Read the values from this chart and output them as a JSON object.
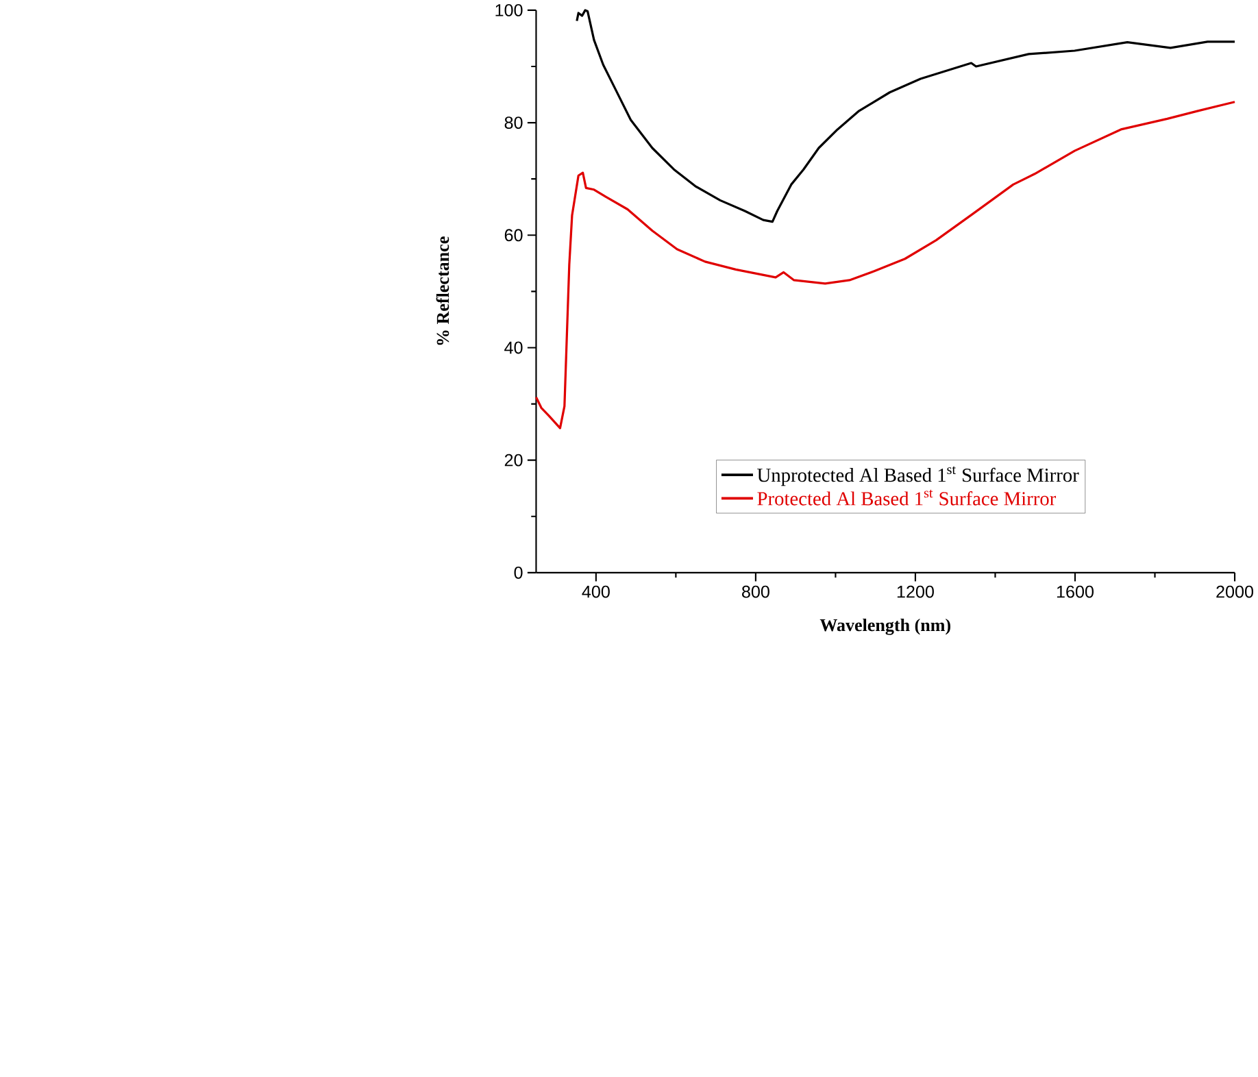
{
  "chart_data": {
    "type": "line",
    "xlabel": "Wavelength (nm)",
    "ylabel": "% Reflectance",
    "xlim": [
      250,
      2000
    ],
    "ylim": [
      0,
      100
    ],
    "xticks": [
      400,
      800,
      1200,
      1600,
      2000
    ],
    "yticks": [
      0,
      20,
      40,
      60,
      80,
      100
    ],
    "legend": "bottom",
    "line_style": "solid",
    "series": [
      {
        "name": "Unprotected Al Based 1$^{st}$ Surface Mirror",
        "color": "#000000",
        "x": [
          352,
          356,
          365,
          373,
          379,
          395,
          418,
          449,
          487,
          541,
          595,
          649,
          711,
          773,
          819,
          842,
          854,
          889,
          920,
          958,
          1005,
          1059,
          1136,
          1213,
          1340,
          1352,
          1484,
          1599,
          1731,
          1839,
          1932,
          2000
        ],
        "values": [
          98.1,
          99.5,
          99.0,
          100,
          99.8,
          94.7,
          90.3,
          85.9,
          80.5,
          75.5,
          71.7,
          68.7,
          66.2,
          64.3,
          62.7,
          62.4,
          64.3,
          69.0,
          71.7,
          75.5,
          78.8,
          82.1,
          85.4,
          87.8,
          90.6,
          90.0,
          92.2,
          92.8,
          94.3,
          93.3,
          94.4,
          94.4
        ]
      },
      {
        "name": "Protected Al Based 1$^{st}$ Surface Mirror",
        "color": "#e00000",
        "x": [
          250,
          263,
          282,
          310,
          321,
          333,
          340,
          356,
          367,
          375,
          395,
          425,
          479,
          541,
          603,
          673,
          750,
          850,
          870,
          896,
          974,
          1035,
          1097,
          1174,
          1252,
          1344,
          1445,
          1499,
          1599,
          1715,
          1831,
          1908,
          2000
        ],
        "values": [
          31.2,
          29.3,
          27.9,
          25.7,
          29.6,
          54.7,
          63.5,
          70.6,
          71.1,
          68.4,
          68.1,
          66.8,
          64.6,
          60.8,
          57.5,
          55.3,
          53.9,
          52.5,
          53.4,
          52.0,
          51.4,
          52.0,
          53.6,
          55.8,
          59.1,
          63.8,
          69.0,
          70.9,
          75.0,
          78.8,
          80.7,
          82.1,
          83.7
        ]
      }
    ]
  }
}
